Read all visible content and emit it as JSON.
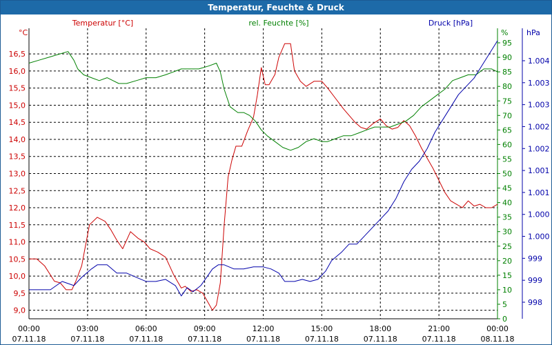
{
  "window": {
    "title": "Temperatur, Feuchte & Druck"
  },
  "colors": {
    "temperature": "#cc0000",
    "humidity": "#008000",
    "pressure": "#0000aa",
    "grid": "#000000"
  },
  "chart_data": {
    "type": "line",
    "title": "Temperatur, Feuchte & Druck",
    "x_ticks": [
      {
        "time": "00:00",
        "date": "07.11.18"
      },
      {
        "time": "03:00",
        "date": "07.11.18"
      },
      {
        "time": "06:00",
        "date": "07.11.18"
      },
      {
        "time": "09:00",
        "date": "07.11.18"
      },
      {
        "time": "12:00",
        "date": "07.11.18"
      },
      {
        "time": "15:00",
        "date": "07.11.18"
      },
      {
        "time": "18:00",
        "date": "07.11.18"
      },
      {
        "time": "21:00",
        "date": "07.11.18"
      },
      {
        "time": "00:00",
        "date": "08.11.18"
      }
    ],
    "xlim_hours": [
      0,
      24
    ],
    "axes": {
      "temperature": {
        "label": "Temperatur [°C]",
        "unit": "°C",
        "ylim": [
          8.75,
          17.25
        ],
        "ticks": [
          "9,0",
          "9,5",
          "10,0",
          "10,5",
          "11,0",
          "11,5",
          "12,0",
          "12,5",
          "13,0",
          "13,5",
          "14,0",
          "14,5",
          "15,0",
          "15,5",
          "16,0",
          "16,5"
        ]
      },
      "humidity": {
        "label": "rel. Feuchte [%]",
        "unit": "%",
        "ylim": [
          0,
          100
        ],
        "ticks": [
          "0",
          "5",
          "10",
          "15",
          "20",
          "25",
          "30",
          "35",
          "40",
          "45",
          "50",
          "55",
          "60",
          "65",
          "70",
          "75",
          "80",
          "85",
          "90",
          "95"
        ]
      },
      "pressure": {
        "label": "Druck [hPa]",
        "unit": "hPa",
        "ylim": [
          997.5,
          1004.5
        ],
        "ticks": [
          "998",
          "999",
          "999",
          "1.000",
          "1.000",
          "1.001",
          "1.001",
          "1.002",
          "1.002",
          "1.003",
          "1.003",
          "1.004"
        ]
      }
    },
    "series": [
      {
        "name": "Temperatur [°C]",
        "axis": "temperature",
        "points": [
          [
            0,
            10.5
          ],
          [
            0.4,
            10.5
          ],
          [
            0.8,
            10.3
          ],
          [
            1.3,
            9.85
          ],
          [
            1.6,
            9.8
          ],
          [
            1.9,
            9.6
          ],
          [
            2.2,
            9.6
          ],
          [
            2.4,
            9.85
          ],
          [
            2.7,
            10.3
          ],
          [
            2.9,
            10.9
          ],
          [
            3.1,
            11.5
          ],
          [
            3.5,
            11.72
          ],
          [
            3.9,
            11.6
          ],
          [
            4.2,
            11.35
          ],
          [
            4.5,
            11.05
          ],
          [
            4.8,
            10.8
          ],
          [
            5.0,
            11.05
          ],
          [
            5.2,
            11.3
          ],
          [
            5.6,
            11.1
          ],
          [
            5.9,
            11.0
          ],
          [
            6.2,
            10.8
          ],
          [
            6.6,
            10.7
          ],
          [
            7.0,
            10.55
          ],
          [
            7.2,
            10.3
          ],
          [
            7.4,
            10.05
          ],
          [
            7.6,
            9.85
          ],
          [
            7.8,
            9.65
          ],
          [
            8.0,
            9.7
          ],
          [
            8.3,
            9.55
          ],
          [
            8.6,
            9.6
          ],
          [
            8.9,
            9.5
          ],
          [
            9.2,
            9.2
          ],
          [
            9.4,
            9.0
          ],
          [
            9.6,
            9.15
          ],
          [
            9.8,
            9.8
          ],
          [
            10.0,
            11.5
          ],
          [
            10.2,
            12.9
          ],
          [
            10.4,
            13.4
          ],
          [
            10.6,
            13.8
          ],
          [
            10.9,
            13.8
          ],
          [
            11.2,
            14.25
          ],
          [
            11.5,
            14.65
          ],
          [
            11.7,
            15.3
          ],
          [
            11.9,
            16.1
          ],
          [
            12.1,
            15.6
          ],
          [
            12.3,
            15.6
          ],
          [
            12.6,
            15.9
          ],
          [
            12.8,
            16.4
          ],
          [
            13.1,
            16.8
          ],
          [
            13.4,
            16.8
          ],
          [
            13.6,
            16.0
          ],
          [
            13.9,
            15.7
          ],
          [
            14.2,
            15.55
          ],
          [
            14.6,
            15.7
          ],
          [
            15.0,
            15.7
          ],
          [
            15.3,
            15.5
          ],
          [
            15.7,
            15.2
          ],
          [
            16.1,
            14.9
          ],
          [
            16.4,
            14.7
          ],
          [
            16.7,
            14.5
          ],
          [
            17.0,
            14.35
          ],
          [
            17.3,
            14.3
          ],
          [
            17.6,
            14.45
          ],
          [
            18.0,
            14.6
          ],
          [
            18.3,
            14.4
          ],
          [
            18.6,
            14.3
          ],
          [
            18.9,
            14.35
          ],
          [
            19.2,
            14.55
          ],
          [
            19.5,
            14.4
          ],
          [
            19.8,
            14.1
          ],
          [
            20.1,
            13.75
          ],
          [
            20.4,
            13.45
          ],
          [
            20.7,
            13.15
          ],
          [
            21.0,
            12.8
          ],
          [
            21.3,
            12.45
          ],
          [
            21.6,
            12.2
          ],
          [
            21.9,
            12.1
          ],
          [
            22.2,
            12.0
          ],
          [
            22.5,
            12.2
          ],
          [
            22.8,
            12.05
          ],
          [
            23.1,
            12.1
          ],
          [
            23.4,
            12.0
          ],
          [
            23.7,
            12.0
          ],
          [
            24,
            12.1
          ]
        ]
      },
      {
        "name": "rel. Feuchte [%]",
        "axis": "humidity",
        "points": [
          [
            0,
            88
          ],
          [
            0.5,
            89
          ],
          [
            1.0,
            90
          ],
          [
            1.5,
            91
          ],
          [
            2.0,
            92
          ],
          [
            2.3,
            89
          ],
          [
            2.5,
            86
          ],
          [
            2.8,
            84
          ],
          [
            3.2,
            83
          ],
          [
            3.6,
            82
          ],
          [
            4.0,
            83
          ],
          [
            4.3,
            82
          ],
          [
            4.6,
            81
          ],
          [
            5.0,
            81
          ],
          [
            5.5,
            82
          ],
          [
            6.0,
            83
          ],
          [
            6.5,
            83
          ],
          [
            7.0,
            84
          ],
          [
            7.4,
            85
          ],
          [
            7.8,
            86
          ],
          [
            8.2,
            86
          ],
          [
            8.7,
            86
          ],
          [
            9.2,
            87
          ],
          [
            9.6,
            88
          ],
          [
            9.8,
            85
          ],
          [
            10.0,
            79
          ],
          [
            10.3,
            73
          ],
          [
            10.7,
            71
          ],
          [
            11.0,
            71
          ],
          [
            11.3,
            70
          ],
          [
            11.6,
            68
          ],
          [
            11.9,
            65
          ],
          [
            12.2,
            63
          ],
          [
            12.6,
            61
          ],
          [
            13.0,
            59
          ],
          [
            13.4,
            58
          ],
          [
            13.8,
            59
          ],
          [
            14.2,
            61
          ],
          [
            14.6,
            62
          ],
          [
            15.0,
            61
          ],
          [
            15.3,
            61
          ],
          [
            15.7,
            62
          ],
          [
            16.1,
            63
          ],
          [
            16.5,
            63
          ],
          [
            16.9,
            64
          ],
          [
            17.3,
            65
          ],
          [
            17.7,
            66
          ],
          [
            18.1,
            66
          ],
          [
            18.5,
            66
          ],
          [
            18.9,
            67
          ],
          [
            19.3,
            68
          ],
          [
            19.7,
            70
          ],
          [
            20.1,
            73
          ],
          [
            20.5,
            75
          ],
          [
            20.9,
            77
          ],
          [
            21.3,
            79
          ],
          [
            21.7,
            82
          ],
          [
            22.1,
            83
          ],
          [
            22.5,
            84
          ],
          [
            22.9,
            84
          ],
          [
            23.3,
            86
          ],
          [
            23.7,
            86
          ],
          [
            24,
            85
          ]
        ]
      },
      {
        "name": "Druck [hPa]",
        "axis": "pressure",
        "points": [
          [
            0,
            998.2
          ],
          [
            0.6,
            998.2
          ],
          [
            1.1,
            998.2
          ],
          [
            1.4,
            998.3
          ],
          [
            1.7,
            998.4
          ],
          [
            2.0,
            998.35
          ],
          [
            2.3,
            998.3
          ],
          [
            2.7,
            998.5
          ],
          [
            3.2,
            998.7
          ],
          [
            3.5,
            998.8
          ],
          [
            4.0,
            998.8
          ],
          [
            4.5,
            998.6
          ],
          [
            5.0,
            998.6
          ],
          [
            5.5,
            998.5
          ],
          [
            6.0,
            998.4
          ],
          [
            6.5,
            998.4
          ],
          [
            7.0,
            998.45
          ],
          [
            7.5,
            998.3
          ],
          [
            7.8,
            998.05
          ],
          [
            8.1,
            998.25
          ],
          [
            8.4,
            998.15
          ],
          [
            8.8,
            998.3
          ],
          [
            9.1,
            998.5
          ],
          [
            9.4,
            998.7
          ],
          [
            9.7,
            998.8
          ],
          [
            10.0,
            998.8
          ],
          [
            10.5,
            998.7
          ],
          [
            11.0,
            998.7
          ],
          [
            11.5,
            998.75
          ],
          [
            12.0,
            998.75
          ],
          [
            12.4,
            998.7
          ],
          [
            12.8,
            998.6
          ],
          [
            13.1,
            998.4
          ],
          [
            13.6,
            998.4
          ],
          [
            14.0,
            998.45
          ],
          [
            14.4,
            998.4
          ],
          [
            14.8,
            998.45
          ],
          [
            15.2,
            998.65
          ],
          [
            15.5,
            998.9
          ],
          [
            16.0,
            999.1
          ],
          [
            16.4,
            999.3
          ],
          [
            16.8,
            999.3
          ],
          [
            17.2,
            999.5
          ],
          [
            17.6,
            999.7
          ],
          [
            18.0,
            999.9
          ],
          [
            18.4,
            1000.1
          ],
          [
            18.8,
            1000.4
          ],
          [
            19.2,
            1000.8
          ],
          [
            19.6,
            1001.1
          ],
          [
            20.0,
            1001.3
          ],
          [
            20.4,
            1001.6
          ],
          [
            20.8,
            1002.0
          ],
          [
            21.2,
            1002.3
          ],
          [
            21.6,
            1002.6
          ],
          [
            22.0,
            1002.9
          ],
          [
            22.4,
            1003.1
          ],
          [
            22.8,
            1003.3
          ],
          [
            23.2,
            1003.6
          ],
          [
            23.6,
            1003.9
          ],
          [
            24,
            1004.2
          ]
        ]
      }
    ]
  }
}
